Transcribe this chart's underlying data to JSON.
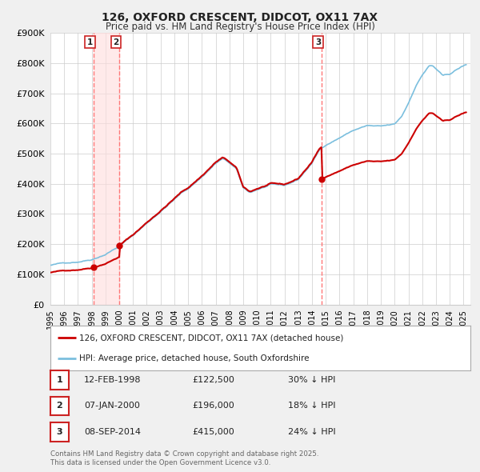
{
  "title": "126, OXFORD CRESCENT, DIDCOT, OX11 7AX",
  "subtitle": "Price paid vs. HM Land Registry's House Price Index (HPI)",
  "legend_property": "126, OXFORD CRESCENT, DIDCOT, OX11 7AX (detached house)",
  "legend_hpi": "HPI: Average price, detached house, South Oxfordshire",
  "background_color": "#f0f0f0",
  "plot_bg_color": "#ffffff",
  "grid_color": "#cccccc",
  "hpi_color": "#7bbfde",
  "property_color": "#cc0000",
  "sale_marker_color": "#cc0000",
  "vline_color": "#ff7777",
  "vline_shade_color": "#ffdddd",
  "ylim": [
    0,
    900000
  ],
  "yticks": [
    0,
    100000,
    200000,
    300000,
    400000,
    500000,
    600000,
    700000,
    800000,
    900000
  ],
  "ytick_labels": [
    "£0",
    "£100K",
    "£200K",
    "£300K",
    "£400K",
    "£500K",
    "£600K",
    "£700K",
    "£800K",
    "£900K"
  ],
  "xstart": 1995.0,
  "xend": 2025.5,
  "sales": [
    {
      "id": 1,
      "date_label": "12-FEB-1998",
      "price": 122500,
      "pct": "30%",
      "year_float": 1998.12
    },
    {
      "id": 2,
      "date_label": "07-JAN-2000",
      "price": 196000,
      "pct": "18%",
      "year_float": 2000.02
    },
    {
      "id": 3,
      "date_label": "08-SEP-2014",
      "price": 415000,
      "pct": "24%",
      "year_float": 2014.69
    }
  ],
  "footnote1": "Contains HM Land Registry data © Crown copyright and database right 2025.",
  "footnote2": "This data is licensed under the Open Government Licence v3.0.",
  "hpi_anchors_t": [
    1995.0,
    1996.0,
    1997.0,
    1998.0,
    1999.0,
    2000.0,
    2001.0,
    2002.0,
    2003.0,
    2004.0,
    2004.5,
    2005.0,
    2006.0,
    2007.0,
    2007.5,
    2008.0,
    2008.5,
    2009.0,
    2009.5,
    2010.0,
    2011.0,
    2012.0,
    2013.0,
    2014.0,
    2014.5,
    2015.0,
    2016.0,
    2017.0,
    2018.0,
    2019.0,
    2020.0,
    2020.5,
    2021.0,
    2021.5,
    2022.0,
    2022.5,
    2022.75,
    2023.0,
    2023.5,
    2024.0,
    2024.5,
    2025.1
  ],
  "hpi_anchors_v": [
    130000,
    137000,
    143000,
    153000,
    172000,
    200000,
    235000,
    275000,
    315000,
    355000,
    375000,
    390000,
    430000,
    475000,
    490000,
    475000,
    455000,
    390000,
    375000,
    385000,
    400000,
    395000,
    415000,
    470000,
    510000,
    530000,
    555000,
    580000,
    595000,
    590000,
    595000,
    620000,
    665000,
    720000,
    760000,
    790000,
    790000,
    780000,
    755000,
    760000,
    775000,
    790000
  ]
}
